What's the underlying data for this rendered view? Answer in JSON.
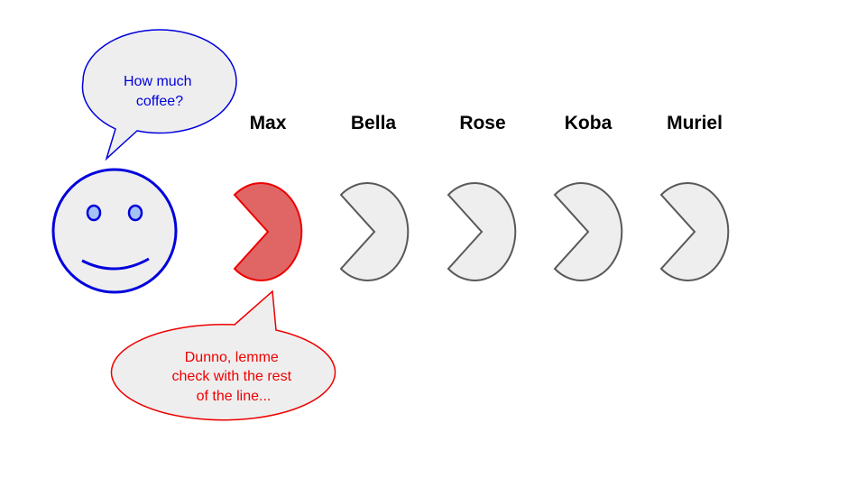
{
  "customer": {
    "speech_lines": [
      "How much",
      "coffee?"
    ],
    "color": "#0000dd"
  },
  "queue": [
    {
      "name": "Max",
      "active": true
    },
    {
      "name": "Bella",
      "active": false
    },
    {
      "name": "Rose",
      "active": false
    },
    {
      "name": "Koba",
      "active": false
    },
    {
      "name": "Muriel",
      "active": false
    }
  ],
  "reply": {
    "lines": [
      "Dunno, lemme",
      "check with the rest",
      "of the line..."
    ],
    "color": "#ee0000"
  },
  "colors": {
    "bubble_fill": "#eeeeee",
    "active_fill": "#e06666",
    "active_stroke": "#ee0000",
    "inactive_fill": "#eeeeee",
    "inactive_stroke": "#595959"
  }
}
